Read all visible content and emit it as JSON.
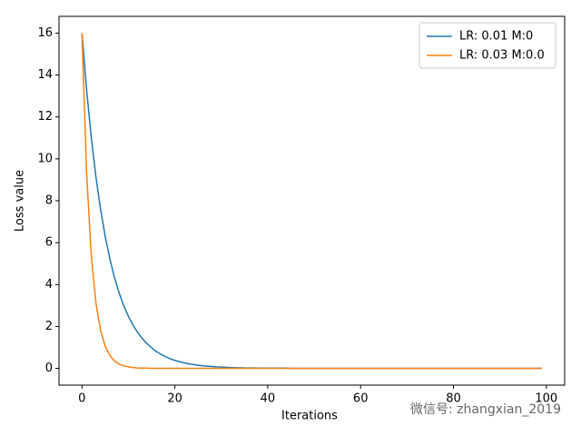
{
  "chart_data": {
    "type": "line",
    "xlabel": "Iterations",
    "ylabel": "Loss value",
    "watermark": "微信号: zhangxian_2019",
    "x": [
      0,
      1,
      2,
      3,
      4,
      5,
      6,
      7,
      8,
      9,
      10,
      11,
      12,
      13,
      14,
      15,
      16,
      17,
      18,
      19,
      20,
      21,
      22,
      23,
      24,
      25,
      26,
      27,
      28,
      29,
      30,
      31,
      32,
      33,
      34,
      35,
      36,
      37,
      38,
      39,
      40,
      41,
      42,
      43,
      44,
      45,
      46,
      47,
      48,
      49,
      50,
      51,
      52,
      53,
      54,
      55,
      56,
      57,
      58,
      59,
      60,
      61,
      62,
      63,
      64,
      65,
      66,
      67,
      68,
      69,
      70,
      71,
      72,
      73,
      74,
      75,
      76,
      77,
      78,
      79,
      80,
      81,
      82,
      83,
      84,
      85,
      86,
      87,
      88,
      89,
      90,
      91,
      92,
      93,
      94,
      95,
      96,
      97,
      98,
      99
    ],
    "series": [
      {
        "name": "LR: 0.01 M:0",
        "color": "#1f77b4",
        "values": [
          16,
          13.28,
          11.02,
          9.15,
          7.59,
          6.3,
          5.23,
          4.34,
          3.6,
          2.99,
          2.48,
          2.06,
          1.71,
          1.42,
          1.18,
          0.98,
          0.81,
          0.67,
          0.56,
          0.46,
          0.38,
          0.32,
          0.26,
          0.22,
          0.18,
          0.15,
          0.12,
          0.1,
          0.09,
          0.07,
          0.06,
          0.05,
          0.04,
          0.03,
          0.03,
          0.02,
          0.02,
          0.02,
          0.01,
          0.01,
          0.01,
          0.01,
          0.01,
          0.01,
          0.01,
          0,
          0,
          0,
          0,
          0,
          0,
          0,
          0,
          0,
          0,
          0,
          0,
          0,
          0,
          0,
          0,
          0,
          0,
          0,
          0,
          0,
          0,
          0,
          0,
          0,
          0,
          0,
          0,
          0,
          0,
          0,
          0,
          0,
          0,
          0,
          0,
          0,
          0,
          0,
          0,
          0,
          0,
          0,
          0,
          0,
          0,
          0,
          0,
          0,
          0,
          0,
          0,
          0,
          0,
          0
        ]
      },
      {
        "name": "LR: 0.03 M:0.0",
        "color": "#ff7f0e",
        "values": [
          16,
          9.28,
          5.38,
          3.12,
          1.81,
          1.05,
          0.61,
          0.35,
          0.21,
          0.12,
          0.07,
          0.04,
          0.02,
          0.01,
          0.01,
          0,
          0,
          0,
          0,
          0,
          0,
          0,
          0,
          0,
          0,
          0,
          0,
          0,
          0,
          0,
          0,
          0,
          0,
          0,
          0,
          0,
          0,
          0,
          0,
          0,
          0,
          0,
          0,
          0,
          0,
          0,
          0,
          0,
          0,
          0,
          0,
          0,
          0,
          0,
          0,
          0,
          0,
          0,
          0,
          0,
          0,
          0,
          0,
          0,
          0,
          0,
          0,
          0,
          0,
          0,
          0,
          0,
          0,
          0,
          0,
          0,
          0,
          0,
          0,
          0,
          0,
          0,
          0,
          0,
          0,
          0,
          0,
          0,
          0,
          0,
          0,
          0,
          0,
          0,
          0,
          0,
          0,
          0,
          0,
          0
        ]
      }
    ],
    "xlim": [
      -4.95,
      103.95
    ],
    "xticks": [
      0,
      20,
      40,
      60,
      80,
      100
    ],
    "ylim": [
      -0.8,
      16.8
    ],
    "yticks": [
      0,
      2,
      4,
      6,
      8,
      10,
      12,
      14,
      16
    ],
    "legend": "upper right",
    "grid": false
  }
}
